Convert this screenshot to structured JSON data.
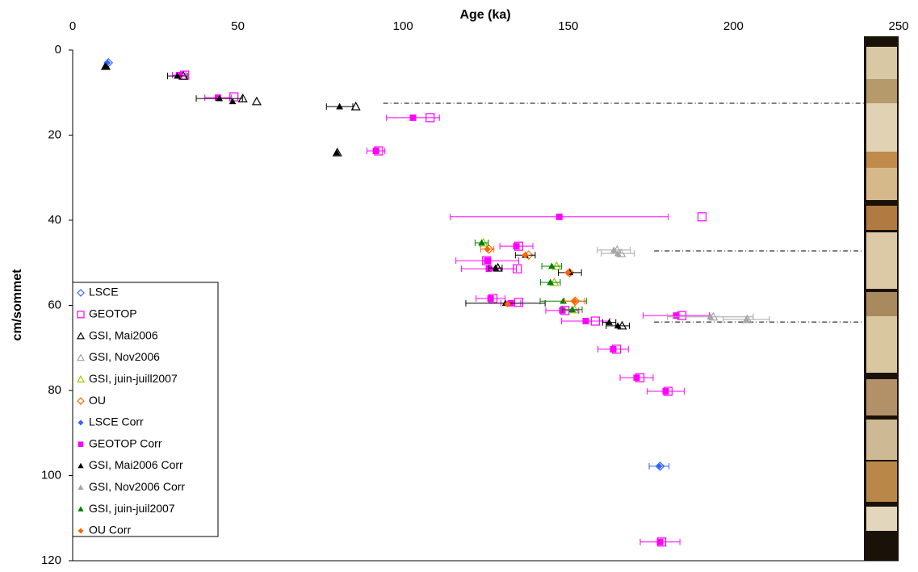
{
  "chart_data": {
    "type": "scatter",
    "x_label": "Age (ka)",
    "y_label": "cm/sommet",
    "xlim": [
      0,
      250
    ],
    "xticks": [
      0,
      50,
      100,
      150,
      200,
      250
    ],
    "ylim": [
      0,
      120
    ],
    "yticks": [
      0,
      20,
      40,
      60,
      80,
      100,
      120
    ],
    "y_inverted": true,
    "x_axis_position": "top",
    "legend": "lower-left",
    "reference_lines": [
      {
        "y": 12.5,
        "xstart": 94
      },
      {
        "y": 47.2,
        "xstart": 176
      },
      {
        "y": 63.9,
        "xstart": 176
      }
    ],
    "series": [
      {
        "name": "LSCE",
        "color": "#3366ff",
        "marker": "diamond",
        "filled": false,
        "x": [
          10.8,
          177.8
        ],
        "y": [
          3.0,
          97.8
        ]
      },
      {
        "name": "GEOTOP",
        "color": "#ff00ff",
        "marker": "square",
        "filled": false,
        "x": [
          33.9,
          48.8,
          108.2,
          92.6,
          190.5,
          135.0,
          125.3,
          134.6,
          127.2,
          135.0,
          149.0,
          158.2,
          184.4,
          164.6,
          171.7,
          180.2,
          178.3
        ],
        "y": [
          5.9,
          11.0,
          15.9,
          23.7,
          39.2,
          46.1,
          49.5,
          51.4,
          58.4,
          59.3,
          61.2,
          63.7,
          62.4,
          70.3,
          77.0,
          80.2,
          115.6
        ]
      },
      {
        "name": "GSI, Mai2006",
        "color": "#000000",
        "marker": "triangle",
        "filled": false,
        "x": [
          10.0,
          33.5,
          51.5,
          55.7,
          85.7,
          80.1,
          128.7,
          166.3
        ],
        "y": [
          3.8,
          6.1,
          11.4,
          12.1,
          13.3,
          24.1,
          51.2,
          64.8
        ]
      },
      {
        "name": "GSI, Nov2006",
        "color": "#a6a6a6",
        "marker": "triangle",
        "filled": false,
        "x": [
          164.8,
          166.0,
          193.9,
          204.2
        ],
        "y": [
          47.0,
          47.8,
          62.7,
          63.3
        ]
      },
      {
        "name": "GSI, juin-juill2007",
        "color": "#99cc00",
        "marker": "triangle",
        "filled": false,
        "x": [
          124.3,
          146.5,
          145.8,
          151.9
        ],
        "y": [
          45.3,
          50.8,
          54.6,
          61.0
        ]
      },
      {
        "name": "OU",
        "color": "#ff6600",
        "marker": "diamond",
        "filled": false,
        "x": [
          126.0,
          138.0,
          150.4,
          152.1
        ],
        "y": [
          46.8,
          48.2,
          52.3,
          59.0
        ]
      },
      {
        "name": "LSCE Corr",
        "color": "#3366ff",
        "marker": "diamond",
        "filled": true,
        "x": [
          10.5,
          177.5
        ],
        "y": [
          3.0,
          97.8
        ],
        "xerr": [
          null,
          3
        ]
      },
      {
        "name": "GEOTOP Corr",
        "color": "#ff00ff",
        "marker": "square",
        "filled": true,
        "x": [
          32.2,
          44.0,
          103.0,
          91.8,
          147.3,
          134.3,
          125.5,
          126.0,
          126.5,
          132.6,
          148.2,
          155.3,
          182.7,
          163.6,
          170.7,
          179.5,
          177.8
        ],
        "y": [
          5.9,
          11.2,
          15.9,
          23.7,
          39.2,
          46.1,
          49.5,
          51.4,
          58.4,
          59.5,
          61.2,
          63.7,
          62.4,
          70.3,
          77.0,
          80.2,
          115.6
        ],
        "xerr": [
          2,
          4,
          8,
          2.7,
          33,
          5,
          9.5,
          8.3,
          4.4,
          3,
          5,
          7.3,
          10,
          4.6,
          5,
          5.6,
          6
        ]
      },
      {
        "name": "GSI, Mai2006 Corr",
        "color": "#000000",
        "marker": "triangle",
        "filled": true,
        "x": [
          10.0,
          31.7,
          44.4,
          48.4,
          80.8,
          79.9,
          128.0,
          162.4,
          165.0,
          131.0,
          137.0,
          150.5
        ],
        "y": [
          3.8,
          6.1,
          11.4,
          12.1,
          13.3,
          24.1,
          51.2,
          64.0,
          64.8,
          59.5,
          48.2,
          52.3
        ],
        "xerr": [
          null,
          3,
          7,
          null,
          4,
          null,
          2,
          2,
          3.5,
          12,
          3,
          3.5
        ]
      },
      {
        "name": "GSI, Nov2006 Corr",
        "color": "#a6a6a6",
        "marker": "triangle",
        "filled": true,
        "x": [
          163.8,
          165.0,
          193.0,
          203.9
        ],
        "y": [
          47.0,
          47.8,
          62.7,
          63.3
        ],
        "xerr": [
          5,
          5,
          13,
          7
        ]
      },
      {
        "name": "GSI, juin-juil2007",
        "color": "#008000",
        "marker": "triangle",
        "filled": true,
        "x": [
          123.8,
          145.0,
          144.6,
          148.5,
          151.2
        ],
        "y": [
          45.3,
          50.8,
          54.6,
          59.0,
          61.0
        ],
        "xerr": [
          2,
          3,
          3,
          7,
          3
        ]
      },
      {
        "name": "OU Corr",
        "color": "#ff6600",
        "marker": "diamond",
        "filled": true,
        "x": [
          125.5,
          137.0,
          149.9,
          151.9,
          131.6
        ],
        "y": [
          46.8,
          48.2,
          52.3,
          59.0,
          59.7
        ],
        "xerr": [
          2,
          null,
          null,
          3,
          null
        ]
      }
    ]
  }
}
